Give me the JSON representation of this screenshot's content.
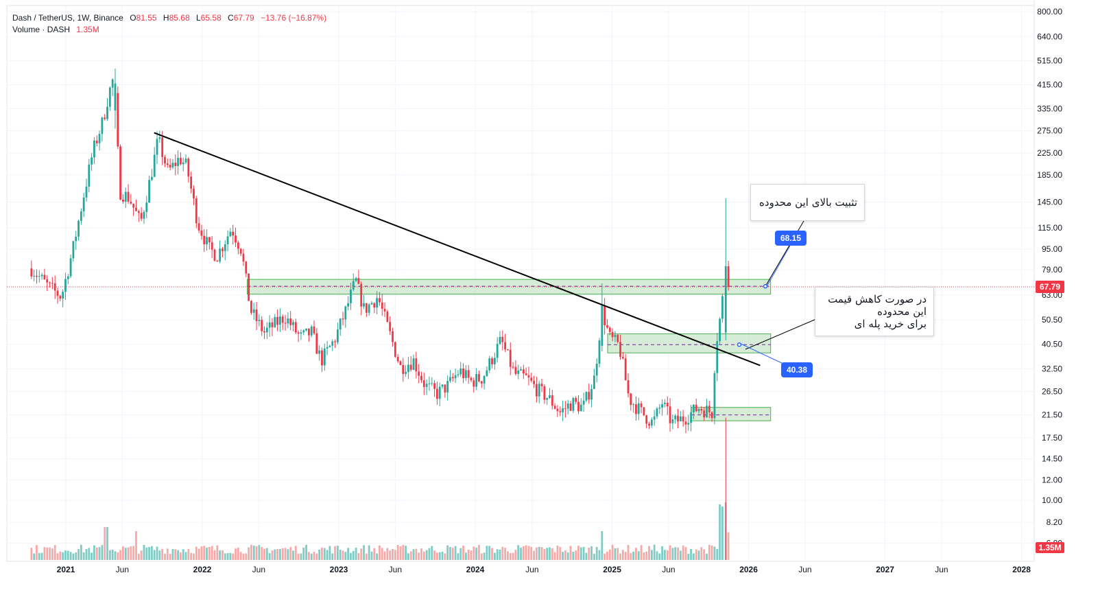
{
  "legend": {
    "symbol": "Dash / TetherUS, 1W, Binance",
    "open_label": "O",
    "open": "81.55",
    "high_label": "H",
    "high": "85.68",
    "low_label": "L",
    "low": "65.58",
    "close_label": "C",
    "close": "67.79",
    "change": "−13.76 (−16.87%)",
    "volume_label": "Volume · DASH",
    "volume": "1.35M"
  },
  "annotations": {
    "top_note": "تثبیت بالای این محدوده",
    "bottom_note_line1": "در صورت کاهش قیمت",
    "bottom_note_line2": "این محدوده",
    "bottom_note_line3": "برای خرید پله ای",
    "badge_top": "68.15",
    "badge_bottom": "40.38"
  },
  "colors": {
    "up": "#26a69a",
    "down": "#f23645",
    "zone_fill": "#c8e6c9",
    "zone_border": "#4caf50",
    "badge": "#2962ff",
    "price_line": "#f23645",
    "trendline": "#000000"
  },
  "chart_data": {
    "type": "candlestick",
    "scale": "log",
    "timeframe": "1W",
    "y_ticks": [
      "800.00",
      "640.00",
      "515.00",
      "415.00",
      "335.00",
      "275.00",
      "225.00",
      "185.00",
      "145.00",
      "115.00",
      "95.00",
      "79.00",
      "63.00",
      "50.50",
      "40.50",
      "32.50",
      "26.50",
      "21.50",
      "17.50",
      "14.50",
      "12.00",
      "10.00",
      "8.20",
      "6.80"
    ],
    "x_ticks": [
      "2021",
      "Jun",
      "2022",
      "Jun",
      "2023",
      "Jun",
      "2024",
      "Jun",
      "2025",
      "Jun",
      "2026",
      "Jun",
      "2027",
      "Jun",
      "2028"
    ],
    "bold_x_ticks": [
      "2021",
      "2022",
      "2023",
      "2024",
      "2025",
      "2026",
      "2027",
      "2028"
    ],
    "last_price": "67.79",
    "last_volume": "1.35M",
    "anchors": [
      [
        "2020-10-01",
        80
      ],
      [
        "2020-11-15",
        68
      ],
      [
        "2020-12-20",
        62
      ],
      [
        "2021-01-20",
        95
      ],
      [
        "2021-02-20",
        160
      ],
      [
        "2021-03-15",
        230
      ],
      [
        "2021-04-10",
        300
      ],
      [
        "2021-04-25",
        380
      ],
      [
        "2021-05-10",
        450
      ],
      [
        "2021-05-25",
        160
      ],
      [
        "2021-06-20",
        150
      ],
      [
        "2021-07-20",
        120
      ],
      [
        "2021-08-15",
        180
      ],
      [
        "2021-09-05",
        255
      ],
      [
        "2021-10-01",
        190
      ],
      [
        "2021-11-01",
        215
      ],
      [
        "2021-11-20",
        200
      ],
      [
        "2021-12-20",
        120
      ],
      [
        "2022-01-20",
        95
      ],
      [
        "2022-02-10",
        90
      ],
      [
        "2022-03-20",
        115
      ],
      [
        "2022-04-15",
        95
      ],
      [
        "2022-05-10",
        55
      ],
      [
        "2022-06-15",
        45
      ],
      [
        "2022-08-10",
        52
      ],
      [
        "2022-09-20",
        43
      ],
      [
        "2022-10-20",
        45
      ],
      [
        "2022-11-15",
        35
      ],
      [
        "2022-12-20",
        42
      ],
      [
        "2023-01-20",
        55
      ],
      [
        "2023-02-15",
        72
      ],
      [
        "2023-03-10",
        55
      ],
      [
        "2023-04-15",
        62
      ],
      [
        "2023-05-10",
        48
      ],
      [
        "2023-06-15",
        33
      ],
      [
        "2023-07-20",
        35
      ],
      [
        "2023-08-20",
        28
      ],
      [
        "2023-09-20",
        26
      ],
      [
        "2023-10-20",
        28
      ],
      [
        "2023-11-20",
        32
      ],
      [
        "2023-12-20",
        29
      ],
      [
        "2024-01-20",
        30
      ],
      [
        "2024-03-10",
        42
      ],
      [
        "2024-04-15",
        31
      ],
      [
        "2024-05-15",
        30
      ],
      [
        "2024-06-15",
        27
      ],
      [
        "2024-07-15",
        25
      ],
      [
        "2024-08-15",
        22
      ],
      [
        "2024-09-15",
        24
      ],
      [
        "2024-10-15",
        23
      ],
      [
        "2024-11-15",
        30
      ],
      [
        "2024-12-05",
        55
      ],
      [
        "2024-12-25",
        43
      ],
      [
        "2025-01-20",
        40
      ],
      [
        "2025-02-15",
        25
      ],
      [
        "2025-03-20",
        22
      ],
      [
        "2025-04-20",
        20
      ],
      [
        "2025-05-15",
        24
      ],
      [
        "2025-06-10",
        20
      ],
      [
        "2025-07-15",
        21
      ],
      [
        "2025-08-20",
        23
      ],
      [
        "2025-09-25",
        22
      ],
      [
        "2025-10-05",
        40
      ],
      [
        "2025-10-20",
        55
      ],
      [
        "2025-11-01",
        81.55
      ],
      [
        "2025-11-10",
        67.79
      ]
    ],
    "special_candles": [
      {
        "date": "2021-05-10",
        "open": 330,
        "high": 480,
        "low": 280,
        "close": 420
      },
      {
        "date": "2024-12-05",
        "open": 40,
        "high": 70,
        "low": 38,
        "close": 58
      },
      {
        "date": "2025-11-01",
        "open": 45,
        "high": 150,
        "low": 42,
        "close": 81.55
      },
      {
        "date": "2025-11-08",
        "open": 81.55,
        "high": 85.68,
        "low": 65.58,
        "close": 67.79
      }
    ],
    "zones": [
      {
        "from": "2022-05-01",
        "to": "2026-03-01",
        "low": 63.5,
        "high": 72.5,
        "mid": 68.15
      },
      {
        "from": "2024-12-20",
        "to": "2026-03-01",
        "low": 37.5,
        "high": 44.5,
        "mid": 40.38
      },
      {
        "from": "2025-08-01",
        "to": "2026-03-01",
        "low": 20.4,
        "high": 23.0,
        "mid": 21.5
      }
    ],
    "trendline": [
      [
        "2021-08-25",
        270
      ],
      [
        "2026-02-01",
        33.5
      ]
    ],
    "volume_spikes": [
      {
        "date": "2021-04-15",
        "value": 1.6
      },
      {
        "date": "2021-04-25",
        "value": 1.6
      },
      {
        "date": "2021-07-10",
        "value": 1.4
      },
      {
        "date": "2024-12-05",
        "value": 1.4
      },
      {
        "date": "2025-10-15",
        "value": 2.7
      },
      {
        "date": "2025-10-25",
        "value": 2.6
      },
      {
        "date": "2025-11-01",
        "value": 2.8
      },
      {
        "date": "2025-11-08",
        "value": 1.35
      }
    ]
  }
}
